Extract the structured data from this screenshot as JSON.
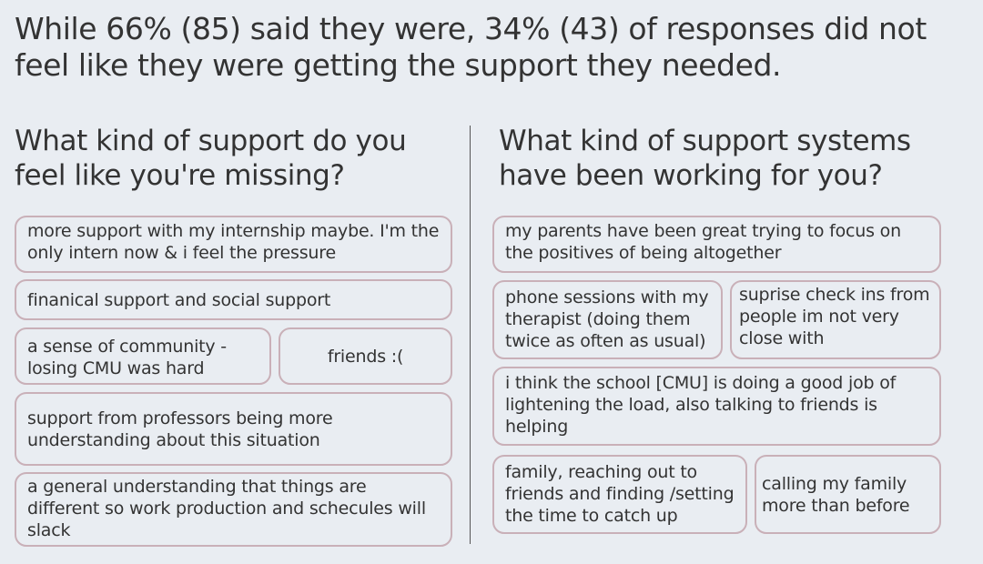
{
  "headline": "While 66% (85) said they were, 34% (43) of responses did not feel like they were getting the support they needed.",
  "left": {
    "title": "What kind of support do you feel like you're missing?",
    "responses": [
      "more support with my internship maybe. I'm the only intern now & i feel the pressure",
      "finanical support and social support",
      "a sense of community - losing CMU was hard",
      "friends :(",
      "support from professors being more understanding about this situation",
      "a general understanding that things are different so work production and schecules will slack"
    ]
  },
  "right": {
    "title": "What kind of support systems have been working for you?",
    "responses": [
      "my parents have been great trying to focus on the positives of being altogether",
      "phone sessions with my therapist (doing them twice as often as usual)",
      "suprise check ins from people im not very close with",
      "i think the school [CMU] is doing a good job of lightening the load, also talking to friends is helping",
      "family, reaching out to friends and finding /setting the time to catch up",
      "calling my family more than before"
    ]
  },
  "colors": {
    "background": "#e9edf2",
    "card_border": "#c9b0b8",
    "text": "#333333"
  }
}
